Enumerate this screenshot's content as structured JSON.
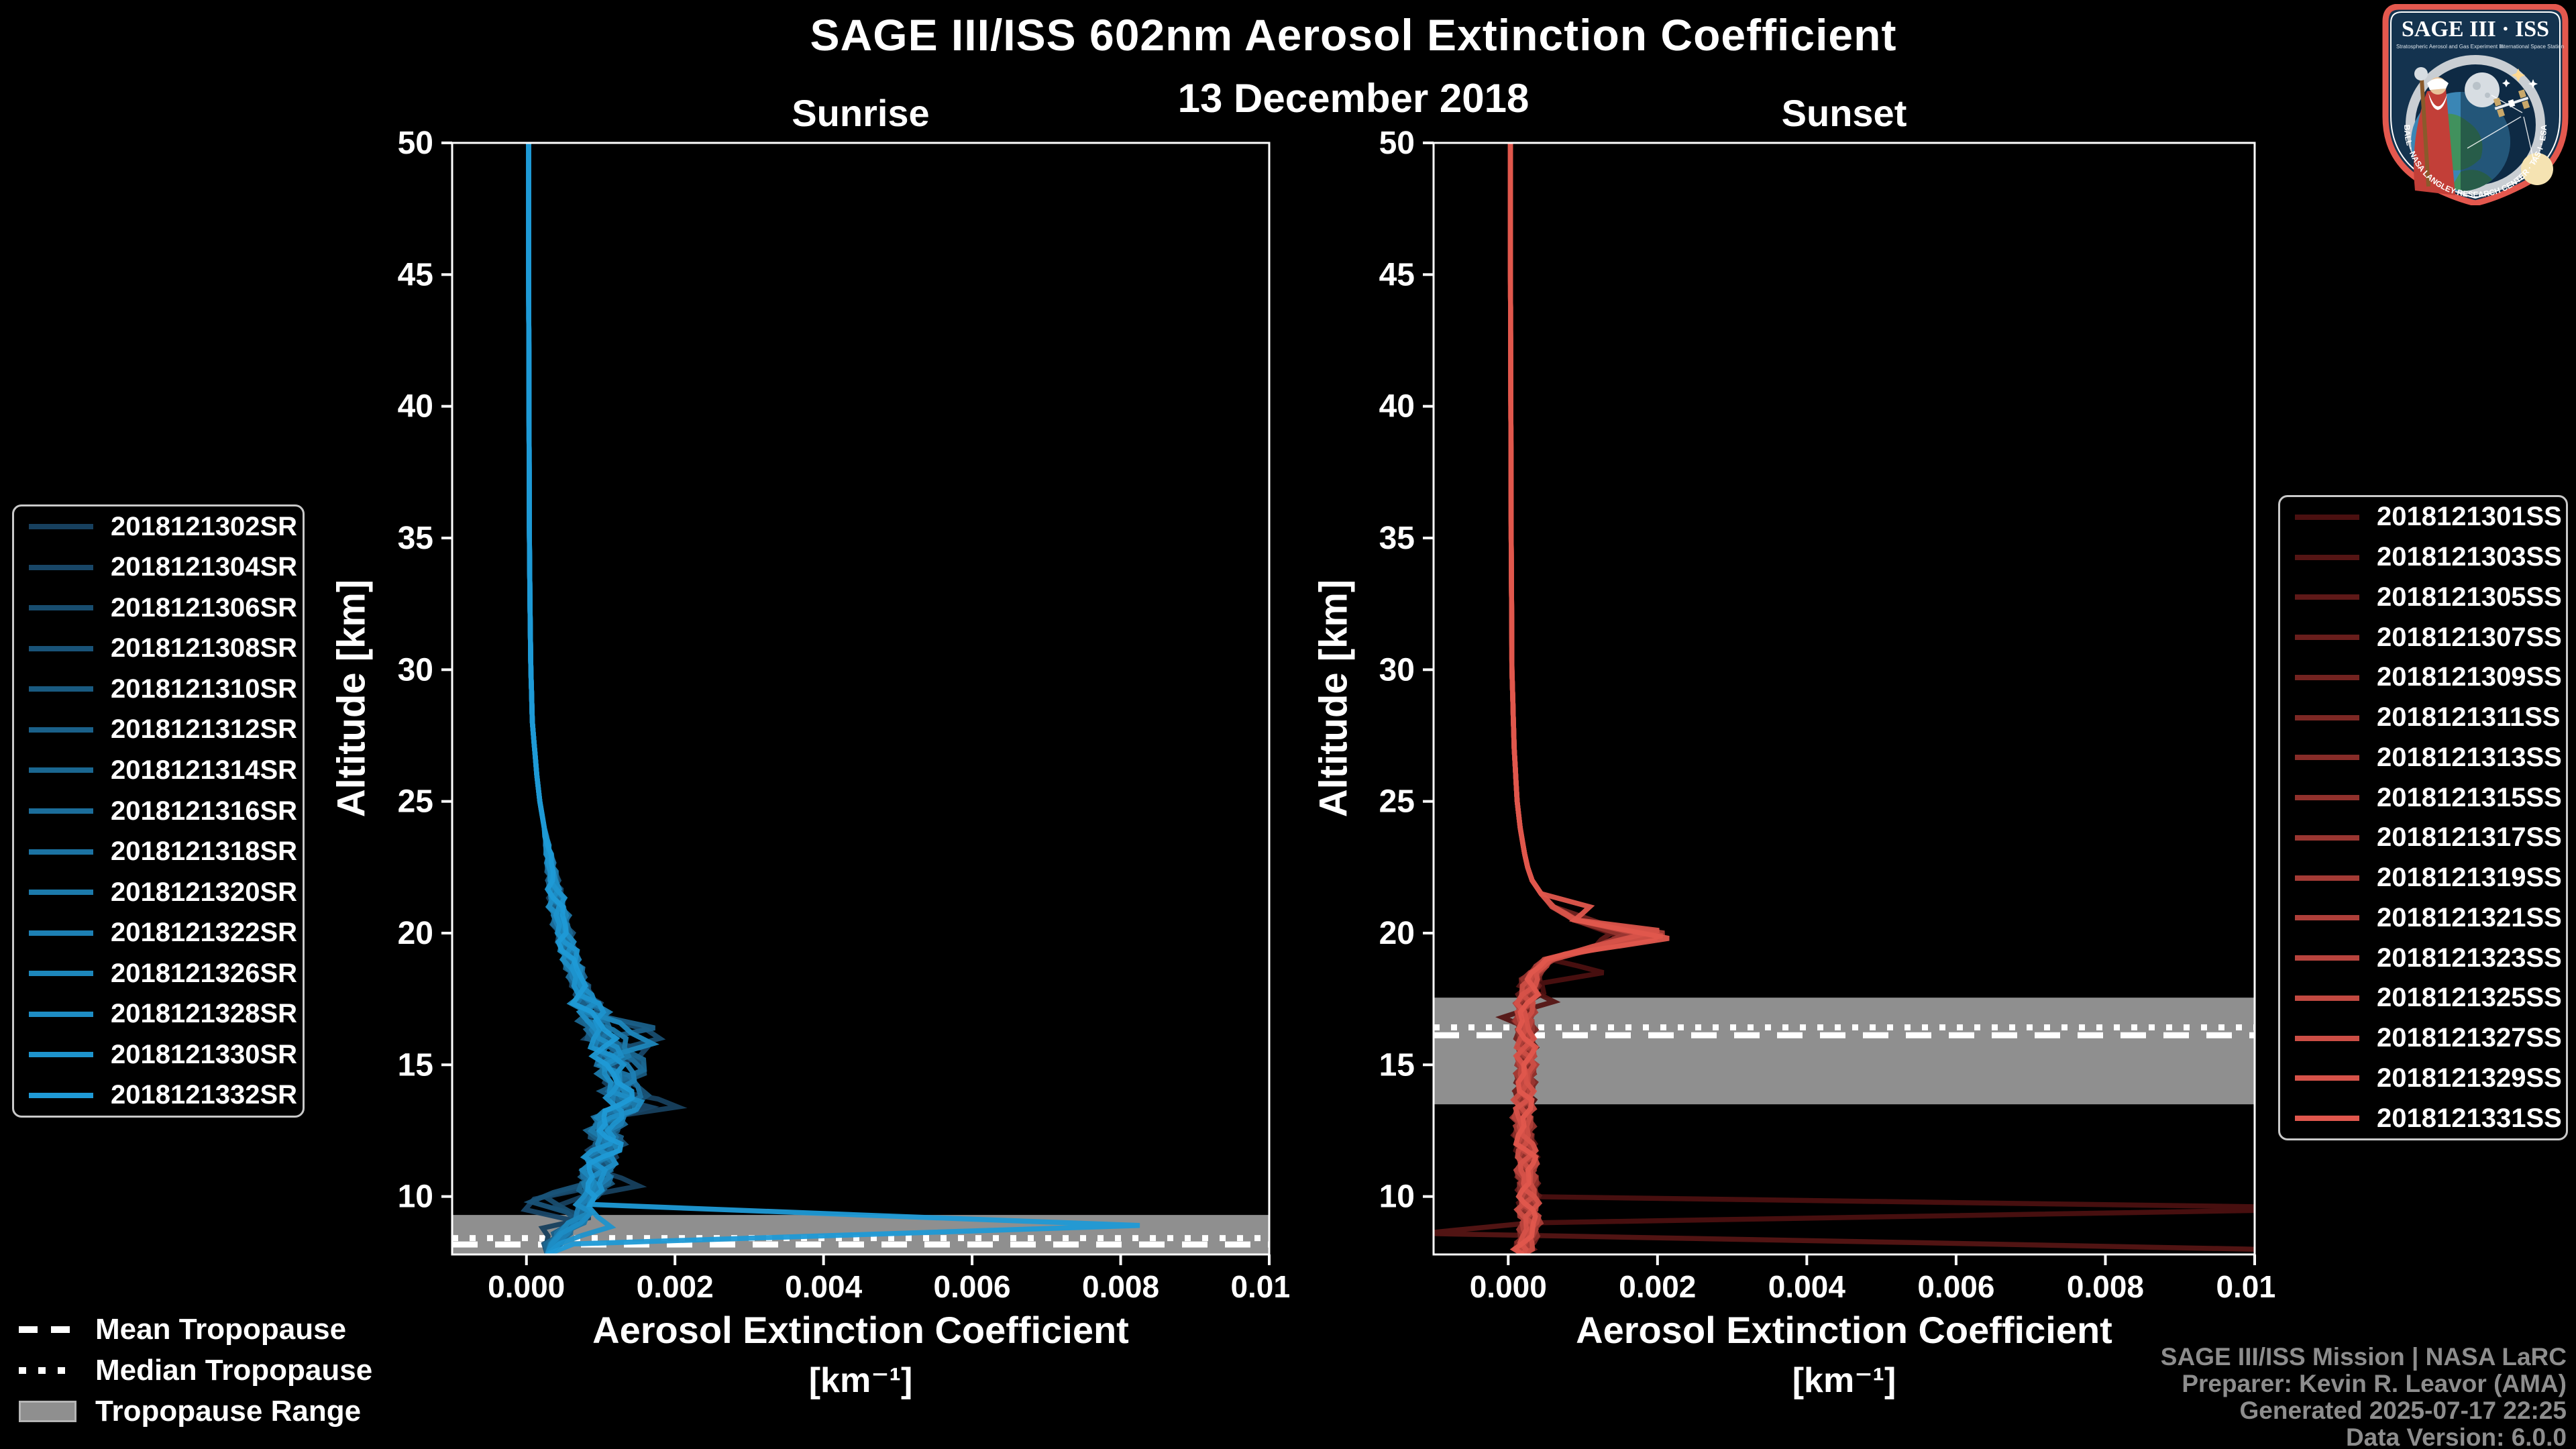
{
  "title": "SAGE III/ISS 602nm Aerosol Extinction Coefficient",
  "subtitle": "13 December 2018",
  "tropopause_legend": {
    "mean": "Mean Tropopause",
    "median": "Median Tropopause",
    "range": "Tropopause Range"
  },
  "credits": [
    "SAGE III/ISS Mission | NASA LaRC",
    "Preparer: Kevin R. Leavor (AMA)",
    "Generated 2025-07-17 22:25",
    "Data Version: 6.0.0"
  ],
  "logo": {
    "title": "SAGE III · ISS",
    "sub_left": "Stratospheric Aerosol and Gas Experiment III",
    "sub_right": "International Space Station",
    "band_text": "BALL · NASA LANGLEY RESEARCH CENTER · TAS-I · ESA"
  },
  "chart_data": [
    {
      "type": "line",
      "panel_title": "Sunrise",
      "xlabel": "Aerosol Extinction Coefficient",
      "xlabel_unit": "[km⁻¹]",
      "ylabel": "Altitude [km]",
      "x_range": [
        -0.001,
        0.01
      ],
      "y_range": [
        7.8,
        50
      ],
      "x_ticks": [
        0,
        0.002,
        0.004,
        0.006,
        0.008,
        0.01
      ],
      "x_tick_labels": [
        "0.000",
        "0.002",
        "0.004",
        "0.006",
        "0.008",
        "0.010"
      ],
      "y_ticks": [
        10,
        15,
        20,
        25,
        30,
        35,
        40,
        45,
        50
      ],
      "grid": false,
      "legend_position": "outside-left",
      "color_start": "#17405e",
      "color_end": "#1f9ad6",
      "tropopause": {
        "range_km": [
          7.8,
          9.3
        ],
        "mean_km": 8.18,
        "median_km": 8.42
      },
      "jitter": {
        "amp": 8e-05,
        "fade_above": 24,
        "hot": [
          10.2,
          17.6
        ],
        "hot_gain": 1.8
      },
      "base_profile": [
        [
          50,
          3e-05
        ],
        [
          45,
          3e-05
        ],
        [
          40,
          3.5e-05
        ],
        [
          35,
          4e-05
        ],
        [
          32,
          5e-05
        ],
        [
          30,
          6e-05
        ],
        [
          28,
          8e-05
        ],
        [
          26,
          0.00014
        ],
        [
          25,
          0.00018
        ],
        [
          24,
          0.00024
        ],
        [
          23,
          0.0003
        ],
        [
          22,
          0.00036
        ],
        [
          21,
          0.00042
        ],
        [
          20,
          0.0005
        ],
        [
          19,
          0.0006
        ],
        [
          18,
          0.00072
        ],
        [
          17,
          0.00088
        ],
        [
          16,
          0.00102
        ],
        [
          15,
          0.00114
        ],
        [
          14,
          0.00122
        ],
        [
          13.5,
          0.00134
        ],
        [
          13,
          0.00114
        ],
        [
          12.5,
          0.00104
        ],
        [
          12,
          0.0011
        ],
        [
          11.5,
          0.001
        ],
        [
          11,
          0.00096
        ],
        [
          10.5,
          0.00092
        ],
        [
          10,
          0.00086
        ],
        [
          9.7,
          0.00074
        ],
        [
          9.4,
          0.0008
        ],
        [
          9,
          0.00066
        ],
        [
          8.6,
          0.00048
        ],
        [
          8.2,
          0.00036
        ],
        [
          7.8,
          0.00028
        ]
      ],
      "series": [
        {
          "name": "2018121302SR",
          "overrides": [
            [
              13.4,
              0.0019
            ],
            [
              10.4,
              0.0016
            ],
            [
              9.6,
              0.0003
            ],
            [
              9.2,
              0.0008
            ],
            [
              8.8,
              0.0002
            ]
          ]
        },
        {
          "name": "2018121304SR",
          "overrides": [
            [
              15.6,
              0.0016
            ],
            [
              13.4,
              0.0016
            ],
            [
              9.9,
              0.00018
            ],
            [
              9.5,
              6e-05
            ],
            [
              9.1,
              0.0006
            ]
          ]
        },
        {
          "name": "2018121306SR",
          "overrides": [
            [
              16,
              0.0017
            ],
            [
              10,
              0.00012
            ],
            [
              9.6,
              -0.00018
            ],
            [
              9.3,
              0.0007
            ]
          ]
        },
        {
          "name": "2018121308SR",
          "overrides": [
            [
              14.2,
              0.0016
            ],
            [
              9.8,
              4e-05
            ],
            [
              9.4,
              0.0005
            ]
          ]
        },
        {
          "name": "2018121310SR",
          "overrides": [
            [
              15,
              0.0015
            ]
          ]
        },
        {
          "name": "2018121312SR",
          "overrides": [
            [
              16.4,
              0.0015
            ],
            [
              13.6,
              0.0014
            ]
          ]
        },
        {
          "name": "2018121314SR",
          "overrides": [
            [
              14.8,
              0.0017
            ]
          ]
        },
        {
          "name": "2018121316SR",
          "overrides": [
            [
              15.2,
              0.0014
            ]
          ]
        },
        {
          "name": "2018121318SR",
          "overrides": [
            [
              13.8,
              0.0015
            ]
          ]
        },
        {
          "name": "2018121320SR",
          "overrides": [
            [
              16,
              0.0013
            ]
          ]
        },
        {
          "name": "2018121322SR",
          "overrides": [
            [
              14.4,
              0.0015
            ]
          ]
        },
        {
          "name": "2018121326SR",
          "overrides": [
            [
              15.8,
              0.0016
            ]
          ]
        },
        {
          "name": "2018121328SR",
          "overrides": [
            [
              13.6,
              0.0014
            ]
          ]
        },
        {
          "name": "2018121330SR",
          "overrides": [
            [
              9.4,
              0.0012
            ],
            [
              9.1,
              0.0031
            ],
            [
              8.85,
              0.0011
            ]
          ]
        },
        {
          "name": "2018121332SR",
          "overrides": [
            [
              9.3,
              0.0013
            ],
            [
              9.05,
              0.0026
            ],
            [
              8.9,
              0.0083
            ],
            [
              8.5,
              0.0009
            ],
            [
              8.2,
              0.0007
            ]
          ]
        }
      ]
    },
    {
      "type": "line",
      "panel_title": "Sunset",
      "xlabel": "Aerosol Extinction Coefficient",
      "xlabel_unit": "[km⁻¹]",
      "ylabel": "Altitude [km]",
      "x_range": [
        -0.001,
        0.01
      ],
      "y_range": [
        7.8,
        50
      ],
      "x_ticks": [
        0,
        0.002,
        0.004,
        0.006,
        0.008,
        0.01
      ],
      "x_tick_labels": [
        "0.000",
        "0.002",
        "0.004",
        "0.006",
        "0.008",
        "0.010"
      ],
      "y_ticks": [
        10,
        15,
        20,
        25,
        30,
        35,
        40,
        45,
        50
      ],
      "grid": false,
      "legend_position": "outside-right",
      "color_start": "#4b1010",
      "color_end": "#e0574d",
      "tropopause": {
        "range_km": [
          13.5,
          17.55
        ],
        "mean_km": 16.12,
        "median_km": 16.42
      },
      "jitter": {
        "amp": 6e-05,
        "fade_above": 21.5,
        "hot": [
          7.8,
          18.5
        ],
        "hot_gain": 1.5
      },
      "base_profile": [
        [
          50,
          3e-05
        ],
        [
          45,
          3e-05
        ],
        [
          40,
          3.5e-05
        ],
        [
          35,
          4e-05
        ],
        [
          30,
          5e-05
        ],
        [
          27,
          8e-05
        ],
        [
          25,
          0.00012
        ],
        [
          24,
          0.00016
        ],
        [
          23,
          0.00022
        ],
        [
          22.5,
          0.00026
        ],
        [
          22,
          0.00032
        ],
        [
          21.5,
          0.00044
        ],
        [
          21,
          0.0006
        ],
        [
          20.5,
          0.0009
        ],
        [
          20,
          0.0014
        ],
        [
          19.8,
          0.0015
        ],
        [
          19.5,
          0.0012
        ],
        [
          19.2,
          0.0008
        ],
        [
          19,
          0.00055
        ],
        [
          18.5,
          0.00035
        ],
        [
          18,
          0.00028
        ],
        [
          17,
          0.00022
        ],
        [
          16,
          0.00023
        ],
        [
          15,
          0.00024
        ],
        [
          14,
          0.00022
        ],
        [
          13,
          0.0002
        ],
        [
          12,
          0.00022
        ],
        [
          11.5,
          0.00026
        ],
        [
          11,
          0.00024
        ],
        [
          10.5,
          0.00026
        ],
        [
          10,
          0.00028
        ],
        [
          9.5,
          0.00026
        ],
        [
          9,
          0.0003
        ],
        [
          8.5,
          0.00026
        ],
        [
          8,
          0.00022
        ],
        [
          7.8,
          0.0002
        ]
      ],
      "series": [
        {
          "name": "2018121301SS",
          "overrides": [
            [
              19,
              0.0006
            ],
            [
              18.5,
              0.0013
            ],
            [
              18.1,
              0.0004
            ],
            [
              10.45,
              0.0002
            ],
            [
              9.55,
              0.0115
            ],
            [
              8.45,
              0.0002
            ]
          ]
        },
        {
          "name": "2018121303SS",
          "overrides": [
            [
              17.4,
              0.0005
            ],
            [
              16.8,
              -0.0001
            ],
            [
              16.3,
              0.0003
            ],
            [
              9,
              0.0003
            ],
            [
              8.6,
              -0.0012
            ],
            [
              7.9,
              0.0118
            ]
          ]
        },
        {
          "name": "2018121305SS",
          "overrides": [
            [
              20,
              0.0014
            ],
            [
              10.45,
              0.00025
            ],
            [
              9.85,
              0.0058
            ],
            [
              9.6,
              0.0003
            ]
          ]
        },
        {
          "name": "2018121307SS",
          "overrides": [
            [
              19.8,
              0.0016
            ]
          ]
        },
        {
          "name": "2018121309SS",
          "overrides": [
            [
              20.2,
              0.00145
            ]
          ]
        },
        {
          "name": "2018121311SS",
          "overrides": [
            [
              19.9,
              0.0017
            ]
          ]
        },
        {
          "name": "2018121313SS",
          "overrides": [
            [
              20,
              0.0016
            ]
          ]
        },
        {
          "name": "2018121315SS",
          "overrides": [
            [
              19.7,
              0.0018
            ]
          ]
        },
        {
          "name": "2018121317SS",
          "overrides": [
            [
              20.1,
              0.0017
            ]
          ]
        },
        {
          "name": "2018121319SS",
          "overrides": [
            [
              19.9,
              0.0019
            ]
          ]
        },
        {
          "name": "2018121321SS",
          "overrides": [
            [
              20,
              0.0021
            ],
            [
              19.6,
              0.0015
            ]
          ]
        },
        {
          "name": "2018121323SS",
          "overrides": [
            [
              19.8,
              0.002
            ]
          ]
        },
        {
          "name": "2018121325SS",
          "overrides": [
            [
              20,
              0.0019
            ]
          ]
        },
        {
          "name": "2018121327SS",
          "overrides": [
            [
              19.9,
              0.0021
            ]
          ]
        },
        {
          "name": "2018121329SS",
          "overrides": [
            [
              20.1,
              0.002
            ]
          ]
        },
        {
          "name": "2018121331SS",
          "overrides": [
            [
              21,
              0.0011
            ],
            [
              19.8,
              0.0021
            ]
          ]
        }
      ]
    }
  ]
}
